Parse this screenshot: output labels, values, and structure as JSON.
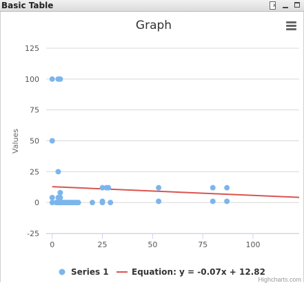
{
  "window": {
    "title": "Basic Table"
  },
  "icons": {
    "clear": "clear-filter-icon",
    "minimize": "minimize-icon",
    "maximize": "maximize-icon",
    "menu": "hamburger-menu-icon"
  },
  "credits": "Highcharts.com",
  "chart_data": {
    "type": "scatter",
    "title": "Graph",
    "xlabel": "",
    "ylabel": "Values",
    "xlim": [
      -3,
      123
    ],
    "ylim": [
      -25,
      125
    ],
    "xticks": [
      0,
      25,
      50,
      75,
      100
    ],
    "yticks": [
      -25,
      0,
      25,
      50,
      75,
      100,
      125
    ],
    "grid": "horizontal",
    "legend_position": "bottom",
    "colors": {
      "series": "#7cb5ec",
      "trend": "#d9534f",
      "grid": "#d8d8d8",
      "axis": "#ccd6eb"
    },
    "series": [
      {
        "name": "Series 1",
        "points": [
          [
            0,
            100
          ],
          [
            3,
            100
          ],
          [
            4,
            100
          ],
          [
            0,
            50
          ],
          [
            3,
            25
          ],
          [
            0,
            4
          ],
          [
            3,
            4
          ],
          [
            4,
            4
          ],
          [
            4,
            8
          ],
          [
            0,
            0
          ],
          [
            2,
            0
          ],
          [
            3,
            0
          ],
          [
            4,
            0
          ],
          [
            5,
            0
          ],
          [
            6,
            0
          ],
          [
            7,
            0
          ],
          [
            8,
            0
          ],
          [
            9,
            0
          ],
          [
            10,
            0
          ],
          [
            11,
            0
          ],
          [
            12,
            0
          ],
          [
            13,
            0
          ],
          [
            20,
            0
          ],
          [
            25,
            0
          ],
          [
            29,
            0
          ],
          [
            25,
            1
          ],
          [
            53,
            1
          ],
          [
            80,
            1
          ],
          [
            87,
            1
          ],
          [
            25,
            12
          ],
          [
            27,
            12
          ],
          [
            28,
            12
          ],
          [
            53,
            12
          ],
          [
            80,
            12
          ],
          [
            87,
            12
          ]
        ]
      }
    ],
    "trendline": {
      "label": "Equation: y = -0.07x + 12.82",
      "slope": -0.07,
      "intercept": 12.82,
      "x_range": [
        0,
        123
      ]
    }
  }
}
